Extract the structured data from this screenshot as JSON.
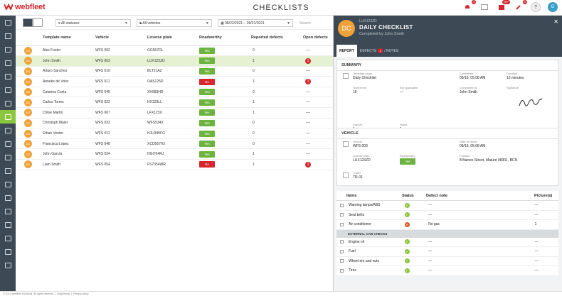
{
  "app": {
    "logo": "webfleet",
    "page_title": "CHECKLISTS",
    "notifications": {
      "bell": "4",
      "mail": "",
      "alerts": "99+",
      "other": "3"
    },
    "help": "?",
    "user_initial": "G"
  },
  "filters": {
    "status": "All statuses",
    "vehicles": "All vehicles",
    "date_range": "08/22/2021 – 09/21/2021",
    "search_placeholder": "Search"
  },
  "table": {
    "headers": [
      "Template name",
      "Vehicle",
      "License plate",
      "Roadworthy",
      "Reported defects",
      "Open defects"
    ],
    "rows": [
      {
        "initials": "DC",
        "name": "Alex Foster",
        "vehicle": "WFS 002",
        "plate": "GG557DL",
        "roadworthy": "Yes",
        "reported": "0",
        "open": "—"
      },
      {
        "initials": "DC",
        "name": "John Smith",
        "vehicle": "WFS 003",
        "plate": "LUX123ZD",
        "roadworthy": "Yes",
        "reported": "1",
        "open": "1"
      },
      {
        "initials": "DC",
        "name": "Arturo Sanchez",
        "vehicle": "WFS 010",
        "plate": "BLT21AZ",
        "roadworthy": "Yes",
        "reported": "0",
        "open": "—"
      },
      {
        "initials": "DC",
        "name": "Anneke de Vries",
        "vehicle": "WFS 011",
        "plate": "OAS125D",
        "roadworthy": "No",
        "reported": "1",
        "open": "1"
      },
      {
        "initials": "DC",
        "name": "Catarina Costa",
        "vehicle": "WFS 045",
        "plate": "XH983HD",
        "roadworthy": "Yes",
        "reported": "0",
        "open": "—"
      },
      {
        "initials": "DC",
        "name": "Carlos Torres",
        "vehicle": "WFS 022",
        "plate": "HX123LL",
        "roadworthy": "Yes",
        "reported": "1",
        "open": "—"
      },
      {
        "initials": "DC",
        "name": "Chloe Martin",
        "vehicle": "WFS 067",
        "plate": "LFX123X",
        "roadworthy": "Yes",
        "reported": "1",
        "open": "—"
      },
      {
        "initials": "DC",
        "name": "Christoph Maier",
        "vehicle": "WFS 033",
        "plate": "WFS534X",
        "roadworthy": "Yes",
        "reported": "0",
        "open": "—"
      },
      {
        "initials": "DC",
        "name": "Ethan Venter",
        "vehicle": "WFS 012",
        "plate": "HJU345FG",
        "roadworthy": "Yes",
        "reported": "0",
        "open": "—"
      },
      {
        "initials": "DC",
        "name": "Francisca López",
        "vehicle": "WFS 048",
        "plate": "XCD567HJ",
        "roadworthy": "Yes",
        "reported": "0",
        "open": "—"
      },
      {
        "initials": "DC",
        "name": "John García",
        "vehicle": "WFS 034",
        "plate": "HGI764RJ",
        "roadworthy": "Yes",
        "reported": "1",
        "open": "—"
      },
      {
        "initials": "DC",
        "name": "Liam Smith",
        "vehicle": "WFS 054",
        "plate": "FS7354WR",
        "roadworthy": "No",
        "reported": "1",
        "open": "1"
      }
    ]
  },
  "panel": {
    "avatar": "DC",
    "id": "LUX123ZD",
    "title": "DAILY CHECKLIST",
    "subtitle": "Completed by John Smith",
    "tabs": {
      "report": "REPORT",
      "defects": "DEFECTS",
      "defects_count": "1",
      "notes": "/ NOTES"
    },
    "summary": {
      "title": "SUMMARY",
      "template_label": "Template name",
      "template": "Daily Checklist",
      "completed_label": "Completed",
      "completed": "09/16, 05:08 AM",
      "duration_label": "Duration",
      "duration": "12 minutes",
      "total_label": "Total items",
      "total": "16",
      "na_label": "Not applicable",
      "na": "—",
      "completed_by_label": "Completed by",
      "completed_by": "John Smith",
      "signature_label": "Signature",
      "defects_label": "Defects",
      "defects": "1",
      "notes_label": "Notes",
      "notes": "1"
    },
    "vehicle": {
      "title": "VEHICLE",
      "vehicle_label": "Vehicle",
      "vehicle": "WFS 003",
      "date_label": "Date of check",
      "date": "09/16, 05:08 AM",
      "plate_label": "License plate",
      "plate": "LUX123ZD",
      "roadworthy_label": "Roadworthy",
      "roadworthy": "Yes",
      "position_label": "Position",
      "position": "8 Baines Street, Maturé 08301, BCN",
      "trailer_label": "Trailer",
      "trailer": "TR-01"
    },
    "items": {
      "headers": {
        "items": "Items",
        "status": "Status",
        "note": "Defect note",
        "pictures": "Picture(s)"
      },
      "rows": [
        {
          "name": "Warning lamps/ABS",
          "status": "ok",
          "note": "—",
          "pics": "—"
        },
        {
          "name": "Seat belts",
          "status": "ok",
          "note": "—",
          "pics": "—"
        },
        {
          "name": "Air conditioner",
          "status": "bad",
          "note": "No gas",
          "pics": "1"
        }
      ],
      "section": "EXTERNAL CAB CHECKS",
      "rows2": [
        {
          "name": "Engine oil",
          "status": "ok",
          "note": "—",
          "pics": "—"
        },
        {
          "name": "Fuel",
          "status": "ok",
          "note": "—",
          "pics": "—"
        },
        {
          "name": "Wheel rim and nuts",
          "status": "ok",
          "note": "—",
          "pics": "—"
        },
        {
          "name": "Tires",
          "status": "ok",
          "note": "—",
          "pics": "—"
        }
      ]
    }
  },
  "footer": {
    "copyright": "© 2021 Webfleet Solutions. All rights reserved",
    "legal": "Legal terms",
    "privacy": "Privacy policy"
  }
}
